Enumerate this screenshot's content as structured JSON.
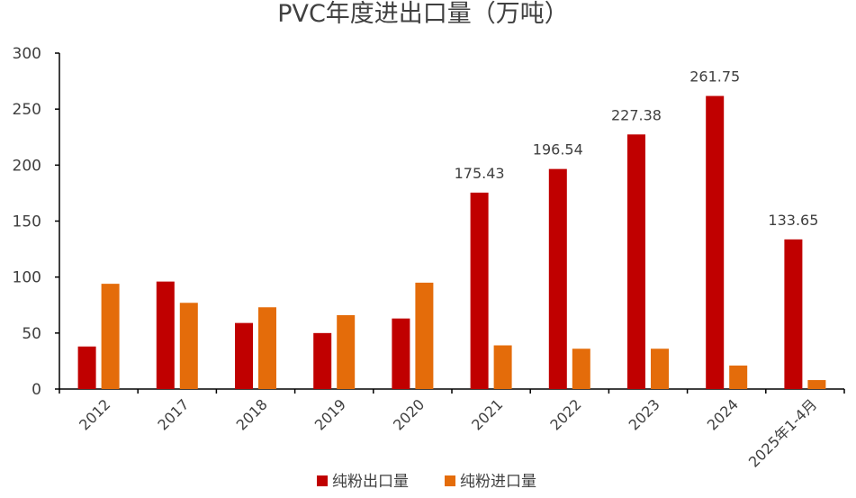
{
  "chart_data": {
    "type": "bar",
    "title": "PVC年度进出口量（万吨）",
    "xlabel": "",
    "ylabel": "",
    "ylim": [
      0,
      300
    ],
    "yticks": [
      0,
      50,
      100,
      150,
      200,
      250,
      300
    ],
    "categories": [
      "2012",
      "2017",
      "2018",
      "2019",
      "2020",
      "2021",
      "2022",
      "2023",
      "2024",
      "2025年1-4月"
    ],
    "series": [
      {
        "name": "纯粉出口量",
        "color": "#C00000",
        "values": [
          38,
          96,
          59,
          50,
          63,
          175.43,
          196.54,
          227.38,
          261.75,
          133.65
        ],
        "data_labels": [
          "",
          "",
          "",
          "",
          "",
          "175.43",
          "196.54",
          "227.38",
          "261.75",
          "133.65"
        ]
      },
      {
        "name": "纯粉进口量",
        "color": "#E46C0A",
        "values": [
          94,
          77,
          73,
          66,
          95,
          39,
          36,
          36,
          21,
          8
        ],
        "data_labels": [
          "",
          "",
          "",
          "",
          "",
          "",
          "",
          "",
          "",
          ""
        ]
      }
    ],
    "grid": false,
    "legend_position": "bottom"
  }
}
